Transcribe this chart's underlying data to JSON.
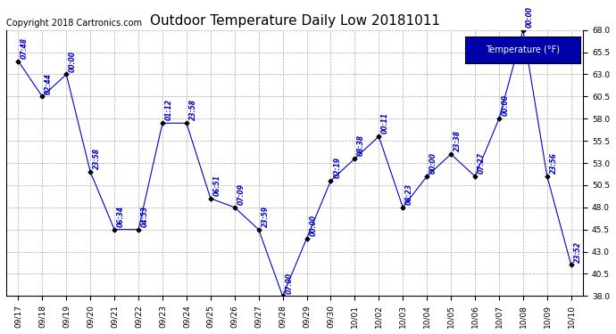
{
  "title": "Outdoor Temperature Daily Low 20181011",
  "copyright": "Copyright 2018 Cartronics.com",
  "legend_label": "Temperature (°F)",
  "x_labels": [
    "09/17",
    "09/18",
    "09/19",
    "09/20",
    "09/21",
    "09/22",
    "09/23",
    "09/24",
    "09/25",
    "09/26",
    "09/27",
    "09/28",
    "09/29",
    "09/30",
    "10/01",
    "10/02",
    "10/03",
    "10/04",
    "10/05",
    "10/06",
    "10/07",
    "10/08",
    "10/09",
    "10/10"
  ],
  "y_values": [
    64.5,
    60.5,
    63.0,
    52.0,
    45.5,
    45.5,
    57.5,
    57.5,
    49.0,
    48.0,
    45.5,
    38.0,
    44.5,
    51.0,
    53.5,
    56.0,
    48.0,
    51.5,
    54.0,
    51.5,
    58.0,
    68.0,
    51.5,
    41.5
  ],
  "time_labels": [
    "07:48",
    "02:44",
    "00:00",
    "23:58",
    "06:34",
    "04:53",
    "01:12",
    "23:58",
    "06:51",
    "07:09",
    "23:59",
    "07:00",
    "00:00",
    "02:19",
    "08:38",
    "00:11",
    "08:23",
    "00:00",
    "23:38",
    "07:27",
    "00:00",
    "00:00",
    "23:56",
    "23:52"
  ],
  "ylim": [
    38.0,
    68.0
  ],
  "yticks": [
    38.0,
    40.5,
    43.0,
    45.5,
    48.0,
    50.5,
    53.0,
    55.5,
    58.0,
    60.5,
    63.0,
    65.5,
    68.0
  ],
  "line_color": "#0000CC",
  "marker_color": "#000000",
  "background_color": "#ffffff",
  "grid_color": "#aaaaaa",
  "title_fontsize": 11,
  "copyright_fontsize": 7,
  "annotation_fontsize": 5.5,
  "tick_fontsize": 6.5,
  "legend_bg": "#0000AA",
  "legend_fg": "#ffffff",
  "legend_fontsize": 7
}
